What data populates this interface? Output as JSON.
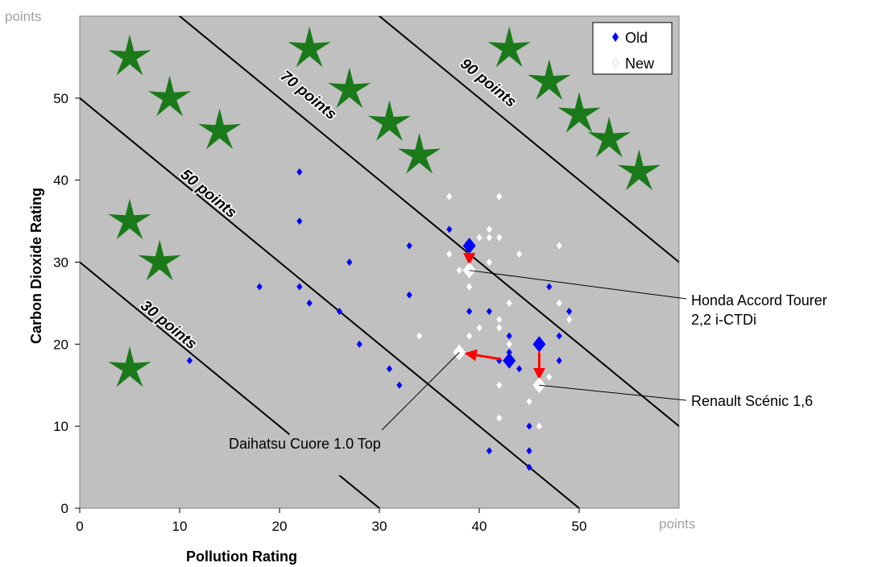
{
  "chart_data": {
    "type": "scatter",
    "xlabel": "Pollution Rating",
    "ylabel": "Carbon Dioxide Rating",
    "x_unit": "points",
    "y_unit": "points",
    "xlim": [
      0,
      60
    ],
    "ylim": [
      0,
      60
    ],
    "xticks": [
      0,
      10,
      20,
      30,
      40,
      50
    ],
    "yticks": [
      0,
      10,
      20,
      30,
      40,
      50
    ],
    "grid": false,
    "legend_position": "top-right",
    "colors": {
      "plot_bg": "#c0c0c0",
      "old": "#0000ff",
      "new": "#ffffff",
      "arrow": "#ff0000",
      "star": "#1a7a1a",
      "line": "#000000"
    },
    "series": [
      {
        "name": "Old",
        "marker": "diamond",
        "points": [
          [
            11,
            18
          ],
          [
            18,
            27
          ],
          [
            22,
            41
          ],
          [
            22,
            35
          ],
          [
            22,
            27
          ],
          [
            23,
            25
          ],
          [
            26,
            24
          ],
          [
            27,
            30
          ],
          [
            28,
            20
          ],
          [
            31,
            17
          ],
          [
            32,
            15
          ],
          [
            33,
            32
          ],
          [
            33,
            26
          ],
          [
            37,
            34
          ],
          [
            39,
            24
          ],
          [
            41,
            24
          ],
          [
            41,
            7
          ],
          [
            42,
            18
          ],
          [
            43,
            21
          ],
          [
            43,
            19
          ],
          [
            44,
            17
          ],
          [
            45,
            10
          ],
          [
            45,
            7
          ],
          [
            45,
            5
          ],
          [
            47,
            27
          ],
          [
            48,
            21
          ],
          [
            48,
            18
          ],
          [
            49,
            24
          ]
        ]
      },
      {
        "name": "New",
        "marker": "diamond",
        "points": [
          [
            34,
            21
          ],
          [
            37,
            38
          ],
          [
            37,
            31
          ],
          [
            38,
            29
          ],
          [
            39,
            31
          ],
          [
            39,
            27
          ],
          [
            39,
            21
          ],
          [
            40,
            33
          ],
          [
            40,
            22
          ],
          [
            41,
            34
          ],
          [
            41,
            33
          ],
          [
            41,
            30
          ],
          [
            42,
            38
          ],
          [
            42,
            33
          ],
          [
            42,
            23
          ],
          [
            42,
            22
          ],
          [
            42,
            15
          ],
          [
            42,
            11
          ],
          [
            43,
            25
          ],
          [
            43,
            20
          ],
          [
            44,
            31
          ],
          [
            45,
            13
          ],
          [
            46,
            20
          ],
          [
            46,
            10
          ],
          [
            47,
            16
          ],
          [
            48,
            32
          ],
          [
            48,
            25
          ],
          [
            49,
            23
          ]
        ]
      }
    ],
    "highlighted": [
      {
        "label": "Honda Accord Tourer 2,2 i-CTDi",
        "lines": [
          "Honda Accord Tourer",
          "2,2 i-CTDi"
        ],
        "old": [
          39,
          32
        ],
        "new": [
          39,
          29
        ]
      },
      {
        "label": "Daihatsu Cuore 1.0 Top",
        "lines": [
          "Daihatsu Cuore 1.0 Top"
        ],
        "old": [
          43,
          18
        ],
        "new": [
          38,
          19
        ]
      },
      {
        "label": "Renault Scénic 1,6",
        "lines": [
          "Renault Scénic 1,6"
        ],
        "old": [
          46,
          20
        ],
        "new": [
          46,
          15
        ]
      }
    ],
    "reference_lines": [
      {
        "label": "30 points",
        "sum": 30
      },
      {
        "label": "50 points",
        "sum": 50
      },
      {
        "label": "70 points",
        "sum": 70
      },
      {
        "label": "90 points",
        "sum": 90
      }
    ],
    "stars": [
      [
        5,
        55
      ],
      [
        9,
        50
      ],
      [
        14,
        46
      ],
      [
        5,
        35
      ],
      [
        8,
        30
      ],
      [
        5,
        17
      ],
      [
        23,
        56
      ],
      [
        27,
        51
      ],
      [
        31,
        47
      ],
      [
        34,
        43
      ],
      [
        43,
        56
      ],
      [
        47,
        52
      ],
      [
        50,
        48
      ],
      [
        53,
        45
      ],
      [
        56,
        41
      ]
    ]
  }
}
